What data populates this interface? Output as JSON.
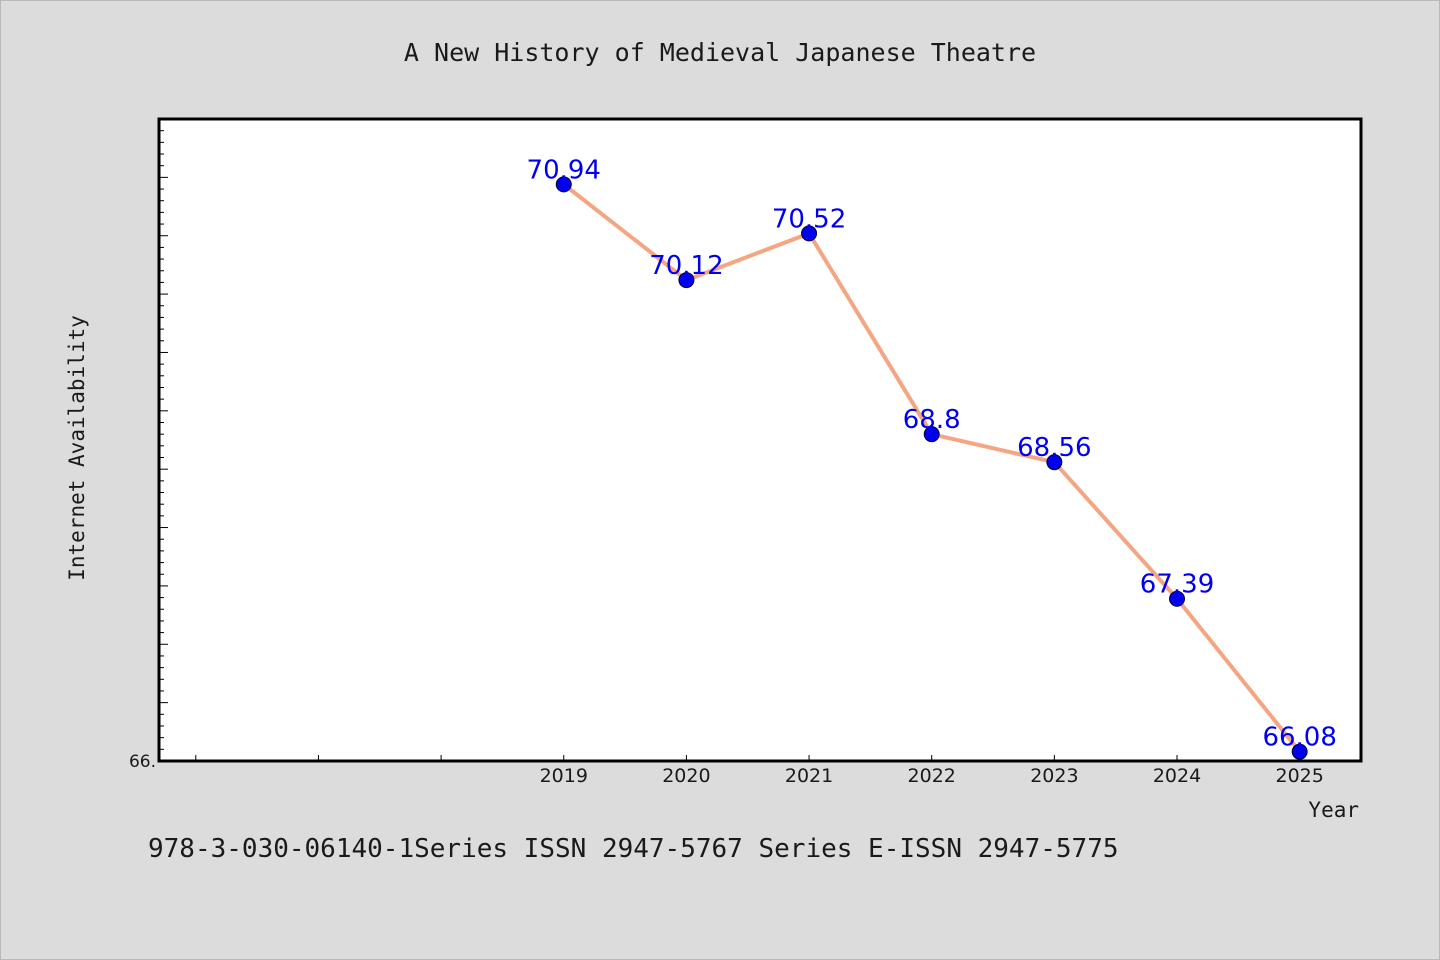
{
  "chart_data": {
    "type": "line",
    "title": "A New History of Medieval Japanese Theatre",
    "xlabel": "Year",
    "ylabel": "Internet Availability",
    "x": [
      2019,
      2020,
      2021,
      2022,
      2023,
      2024,
      2025
    ],
    "x_tick_labels": [
      "2019",
      "2020",
      "2021",
      "2022",
      "2023",
      "2024",
      "2025"
    ],
    "xlim": [
      2015.7,
      2025.5
    ],
    "ylim": [
      66.0,
      71.5
    ],
    "y_tick_label": "66.",
    "series": [
      {
        "values": [
          70.94,
          70.12,
          70.52,
          68.8,
          68.56,
          67.39,
          66.08
        ],
        "data_labels": [
          "70.94",
          "70.12",
          "70.52",
          "68.8",
          "68.56",
          "67.39",
          "66.08"
        ],
        "line_color": "#f4a582",
        "marker_color": "#0000ee"
      }
    ],
    "label_color": "#0000ee",
    "grid": false,
    "legend": "none"
  },
  "footer": {
    "text": "978-3-030-06140-1Series ISSN 2947-5767 Series E-ISSN 2947-5775"
  }
}
